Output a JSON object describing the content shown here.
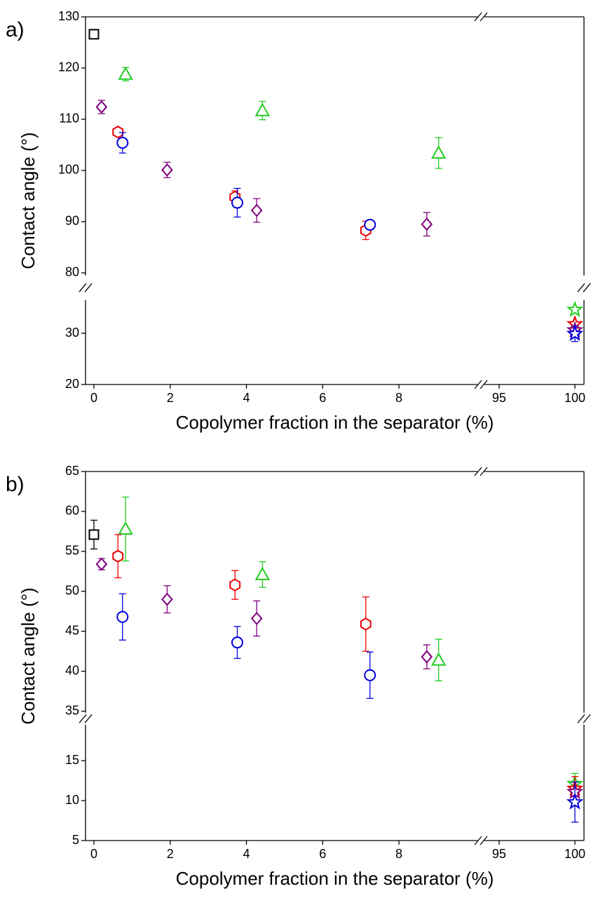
{
  "chart_data": [
    {
      "type": "scatter",
      "panel_label": "a)",
      "xlabel": "Copolymer fraction in the separator (%)",
      "ylabel": "Contact angle (°)",
      "x_axis_segments": [
        {
          "xlim": [
            -0.22,
            10.15
          ],
          "xticks": [
            0,
            2,
            4,
            6,
            8
          ]
        },
        {
          "xlim": [
            93.8,
            100.6
          ],
          "xticks": [
            95,
            100
          ]
        }
      ],
      "y_axis_segments": [
        {
          "ylim": [
            20,
            36.5
          ],
          "yticks": [
            20,
            30
          ]
        },
        {
          "ylim": [
            79.5,
            130
          ],
          "yticks": [
            80,
            90,
            100,
            110,
            120,
            130
          ]
        }
      ],
      "series": [
        {
          "color": "#000000",
          "marker": "square",
          "x": [
            0
          ],
          "values": [
            126.6
          ],
          "errors": [
            null
          ]
        },
        {
          "color": "#22cc22",
          "marker": "triangle",
          "x": [
            0.83,
            4.42,
            9.04
          ],
          "values": [
            118.8,
            111.7,
            103.4
          ],
          "errors": [
            1.3,
            1.8,
            3
          ]
        },
        {
          "color": "#7f007f",
          "marker": "diamond",
          "x": [
            0.2,
            1.92,
            4.27,
            8.73
          ],
          "values": [
            112.4,
            100.1,
            92.2,
            89.5
          ],
          "errors": [
            1.3,
            1.5,
            2.3,
            2.3
          ]
        },
        {
          "color": "#ee0000",
          "marker": "hexagon",
          "x": [
            0.63,
            3.7,
            7.13
          ],
          "values": [
            107.5,
            94.8,
            88.3
          ],
          "errors": [
            null,
            1.2,
            1.8
          ]
        },
        {
          "color": "#0000dd",
          "marker": "circle",
          "x": [
            0.75,
            3.76,
            7.24
          ],
          "values": [
            105.4,
            93.7,
            89.4
          ],
          "errors": [
            2,
            2.8,
            null
          ]
        },
        {
          "color": "#22cc22",
          "marker": "star",
          "x": [
            100
          ],
          "values": [
            34.6
          ],
          "errors": [
            null
          ]
        },
        {
          "color": "#ee0000",
          "marker": "star",
          "x": [
            100
          ],
          "values": [
            31.8
          ],
          "errors": [
            null
          ]
        },
        {
          "color": "#7f007f",
          "marker": "star",
          "x": [
            100
          ],
          "values": [
            30.6
          ],
          "errors": [
            null
          ]
        },
        {
          "color": "#0000dd",
          "marker": "star",
          "x": [
            100
          ],
          "values": [
            29.9
          ],
          "errors": [
            1.5
          ]
        }
      ]
    },
    {
      "type": "scatter",
      "panel_label": "b)",
      "xlabel": "Copolymer fraction in the separator (%)",
      "ylabel": "Contact angle (°)",
      "x_axis_segments": [
        {
          "xlim": [
            -0.22,
            10.15
          ],
          "xticks": [
            0,
            2,
            4,
            6,
            8
          ]
        },
        {
          "xlim": [
            93.8,
            100.6
          ],
          "xticks": [
            95,
            100
          ]
        }
      ],
      "y_axis_segments": [
        {
          "ylim": [
            5,
            19.5
          ],
          "yticks": [
            5,
            10,
            15
          ]
        },
        {
          "ylim": [
            34.8,
            65
          ],
          "yticks": [
            35,
            40,
            45,
            50,
            55,
            60,
            65
          ]
        }
      ],
      "series": [
        {
          "color": "#000000",
          "marker": "square",
          "x": [
            0
          ],
          "values": [
            57.1
          ],
          "errors": [
            1.8
          ]
        },
        {
          "color": "#22cc22",
          "marker": "triangle",
          "x": [
            0.83,
            4.42,
            9.04
          ],
          "values": [
            57.8,
            52.1,
            41.4
          ],
          "errors": [
            4,
            1.6,
            2.6
          ]
        },
        {
          "color": "#7f007f",
          "marker": "diamond",
          "x": [
            0.2,
            1.92,
            4.27,
            8.73
          ],
          "values": [
            53.4,
            49,
            46.6,
            41.8
          ],
          "errors": [
            0.7,
            1.7,
            2.2,
            1.5
          ]
        },
        {
          "color": "#ee0000",
          "marker": "hexagon",
          "x": [
            0.63,
            3.7,
            7.13
          ],
          "values": [
            54.4,
            50.8,
            45.9
          ],
          "errors": [
            2.7,
            1.8,
            3.4
          ]
        },
        {
          "color": "#0000dd",
          "marker": "circle",
          "x": [
            0.75,
            3.76,
            7.24
          ],
          "values": [
            46.8,
            43.6,
            39.5
          ],
          "errors": [
            2.9,
            2,
            2.9
          ]
        },
        {
          "color": "#22cc22",
          "marker": "star",
          "x": [
            100
          ],
          "values": [
            12.1
          ],
          "errors": [
            1.3
          ]
        },
        {
          "color": "#ee0000",
          "marker": "star",
          "x": [
            100
          ],
          "values": [
            11.5
          ],
          "errors": [
            1.5
          ]
        },
        {
          "color": "#7f007f",
          "marker": "star",
          "x": [
            100
          ],
          "values": [
            11.1
          ],
          "errors": [
            null
          ]
        },
        {
          "color": "#0000dd",
          "marker": "star",
          "x": [
            100
          ],
          "values": [
            9.8
          ],
          "errors": [
            2.5
          ]
        }
      ]
    }
  ]
}
